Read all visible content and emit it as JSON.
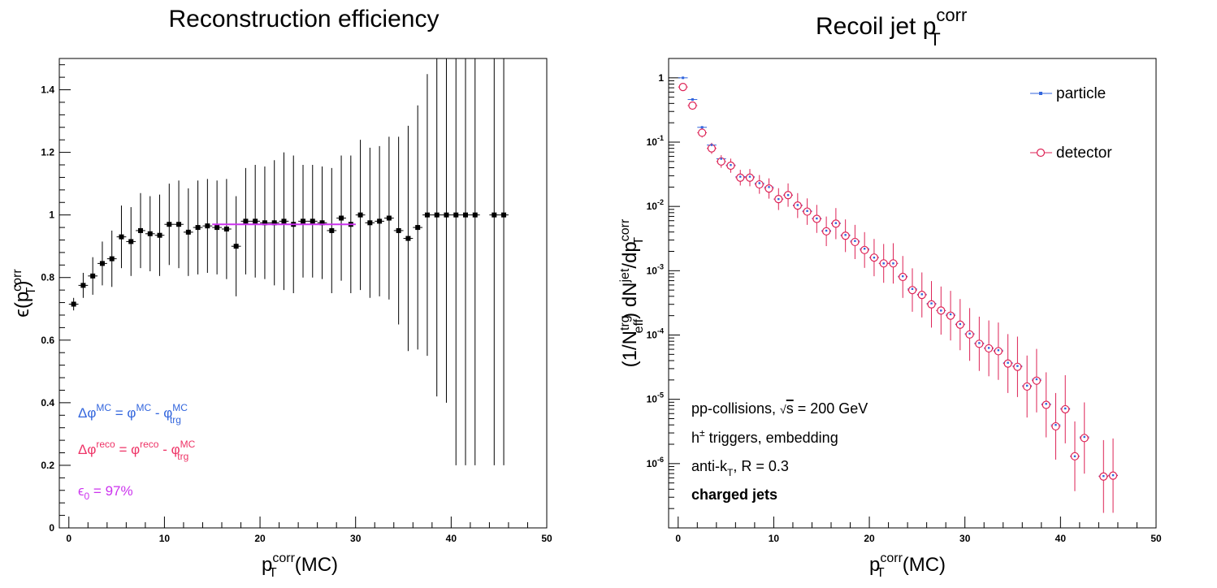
{
  "chart_data": [
    {
      "type": "scatter",
      "title": "Reconstruction efficiency",
      "ylabel": "ϵ(p_T^corr)",
      "xlabel": "p_T^corr(MC)",
      "xlim": [
        -1,
        50
      ],
      "ylim": [
        0,
        1.5
      ],
      "log_y": false,
      "x_ticks": [
        "0",
        "10",
        "20",
        "30",
        "40",
        "50"
      ],
      "y_ticks": [
        "0",
        "0.2",
        "0.4",
        "0.6",
        "0.8",
        "1",
        "1.2",
        "1.4"
      ],
      "series": [
        {
          "x": [
            0.5,
            1.5,
            2.5,
            3.5,
            4.5,
            5.5,
            6.5,
            7.5,
            8.5,
            9.5,
            10.5,
            11.5,
            12.5,
            13.5,
            14.5,
            15.5,
            16.5,
            17.5,
            18.5,
            19.5,
            20.5,
            21.5,
            22.5,
            23.5,
            24.5,
            25.5,
            26.5,
            27.5,
            28.5,
            29.5,
            30.5,
            31.5,
            32.5,
            33.5,
            34.5,
            35.5,
            36.5,
            37.5,
            38.5,
            39.5,
            40.5,
            41.5,
            42.5,
            44.5,
            45.5
          ],
          "y": [
            0.715,
            0.775,
            0.805,
            0.845,
            0.86,
            0.93,
            0.915,
            0.95,
            0.94,
            0.935,
            0.97,
            0.97,
            0.945,
            0.96,
            0.965,
            0.96,
            0.955,
            0.9,
            0.98,
            0.98,
            0.975,
            0.975,
            0.98,
            0.97,
            0.98,
            0.98,
            0.975,
            0.95,
            0.99,
            0.97,
            1.0,
            0.975,
            0.98,
            0.99,
            0.95,
            0.925,
            0.96,
            1.0,
            1.0,
            1.0,
            1.0,
            1.0,
            1.0,
            1.0,
            1.0
          ],
          "yerr": [
            0.02,
            0.04,
            0.06,
            0.07,
            0.09,
            0.1,
            0.11,
            0.12,
            0.12,
            0.13,
            0.13,
            0.14,
            0.14,
            0.15,
            0.15,
            0.15,
            0.16,
            0.16,
            0.17,
            0.18,
            0.18,
            0.2,
            0.22,
            0.22,
            0.18,
            0.18,
            0.18,
            0.2,
            0.2,
            0.22,
            0.24,
            0.24,
            0.24,
            0.26,
            0.3,
            0.36,
            0.39,
            0.45,
            0.58,
            0.6,
            0.8,
            0.8,
            0.8,
            0.8,
            0.8
          ]
        }
      ],
      "fit": {
        "x_range": [
          15,
          30
        ],
        "y": 0.97,
        "color": "#cc33ee"
      },
      "annotations": [
        {
          "text": "Δφ^MC = φ^MC - φ_trg^MC",
          "color": "#3366dd"
        },
        {
          "text": "Δφ^reco = φ^reco - φ_trg^MC",
          "color": "#ee3366"
        },
        {
          "text": "ϵ_0 = 97%",
          "color": "#cc33ee"
        }
      ]
    },
    {
      "type": "scatter",
      "title": "Recoil jet p_T^corr",
      "ylabel": "(1/N_eff^trg) dN^jet/dp_T^corr",
      "xlabel": "p_T^corr(MC)",
      "xlim": [
        -1,
        50
      ],
      "ylim": [
        1e-07,
        2
      ],
      "log_y": true,
      "x_ticks": [
        "0",
        "10",
        "20",
        "30",
        "40",
        "50"
      ],
      "legend_position": "top-right",
      "series": [
        {
          "name": "particle",
          "color": "#3366dd",
          "x": [
            0.5,
            1.5,
            2.5,
            3.5,
            4.5,
            5.5,
            6.5,
            7.5,
            8.5,
            9.5,
            10.5,
            11.5,
            12.5,
            13.5,
            14.5,
            15.5,
            16.5,
            17.5,
            18.5,
            19.5,
            20.5,
            21.5,
            22.5,
            23.5,
            24.5,
            25.5,
            26.5,
            27.5,
            28.5,
            29.5,
            30.5,
            31.5,
            32.5,
            33.5,
            34.5,
            35.5,
            36.5,
            37.5,
            38.5,
            39.5,
            40.5,
            41.5,
            42.5,
            44.5,
            45.5
          ],
          "y": [
            1.0,
            0.46,
            0.17,
            0.09,
            0.055,
            0.044,
            0.029,
            0.029,
            0.023,
            0.02,
            0.013,
            0.015,
            0.0105,
            0.0085,
            0.0065,
            0.0042,
            0.0055,
            0.0036,
            0.0029,
            0.0022,
            0.0016,
            0.0013,
            0.0013,
            0.00082,
            0.00052,
            0.00043,
            0.00031,
            0.00024,
            0.00021,
            0.000148,
            0.000105,
            7.5e-05,
            6.3e-05,
            5.8e-05,
            3.7e-05,
            3.3e-05,
            1.63e-05,
            2.05e-05,
            8.5e-06,
            4e-06,
            7.2e-06,
            1.3e-06,
            2.6e-06,
            6.4e-07,
            6.6e-07
          ]
        },
        {
          "name": "detector",
          "color": "#dd2255",
          "x": [
            0.5,
            1.5,
            2.5,
            3.5,
            4.5,
            5.5,
            6.5,
            7.5,
            8.5,
            9.5,
            10.5,
            11.5,
            12.5,
            13.5,
            14.5,
            15.5,
            16.5,
            17.5,
            18.5,
            19.5,
            20.5,
            21.5,
            22.5,
            23.5,
            24.5,
            25.5,
            26.5,
            27.5,
            28.5,
            29.5,
            30.5,
            31.5,
            32.5,
            33.5,
            34.5,
            35.5,
            36.5,
            37.5,
            38.5,
            39.5,
            40.5,
            41.5,
            42.5,
            44.5,
            45.5
          ],
          "y": [
            0.72,
            0.37,
            0.14,
            0.08,
            0.05,
            0.043,
            0.028,
            0.028,
            0.022,
            0.019,
            0.013,
            0.015,
            0.0103,
            0.0083,
            0.0064,
            0.0041,
            0.0054,
            0.0035,
            0.0028,
            0.0021,
            0.0016,
            0.0013,
            0.0013,
            0.0008,
            0.0005,
            0.00042,
            0.0003,
            0.00024,
            0.0002,
            0.000145,
            0.000102,
            7.3e-05,
            6.2e-05,
            5.6e-05,
            3.6e-05,
            3.2e-05,
            1.58e-05,
            1.95e-05,
            8.2e-06,
            3.8e-06,
            7e-06,
            1.3e-06,
            2.5e-06,
            6.3e-07,
            6.5e-07
          ]
        }
      ],
      "notes": [
        "pp-collisions, √s = 200 GeV",
        "h± triggers, embedding",
        "anti-k_T, R = 0.3",
        "charged jets"
      ]
    }
  ]
}
